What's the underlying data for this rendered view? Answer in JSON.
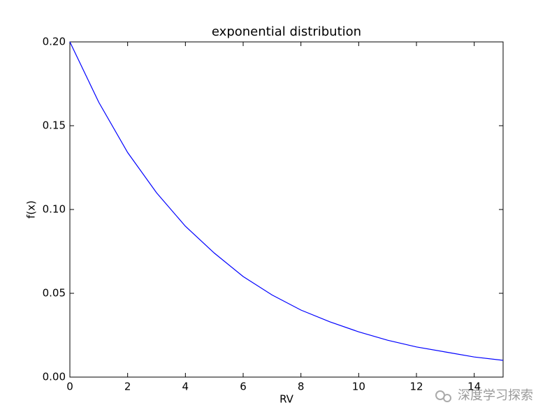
{
  "chart_data": {
    "type": "line",
    "title": "exponential distribution",
    "x_label": "RV",
    "y_label": "f(x)",
    "x": [
      0,
      1,
      2,
      3,
      4,
      5,
      6,
      7,
      8,
      9,
      10,
      11,
      12,
      13,
      14,
      15
    ],
    "series": [
      {
        "name": "f(x)",
        "color": "#0000ff",
        "values": [
          0.2,
          0.164,
          0.134,
          0.11,
          0.09,
          0.074,
          0.06,
          0.049,
          0.04,
          0.033,
          0.027,
          0.022,
          0.018,
          0.015,
          0.012,
          0.01
        ]
      }
    ],
    "xlim": [
      0,
      15
    ],
    "xticks": [
      0,
      2,
      4,
      6,
      8,
      10,
      12,
      14
    ],
    "ylim": [
      0,
      0.2
    ],
    "yticks": [
      {
        "value": 0,
        "label": "0.00"
      },
      0.05,
      {
        "value": 0.1,
        "label": "0.10"
      },
      0.15,
      {
        "value": 0.2,
        "label": "0.20"
      }
    ],
    "watermark": "深度学习探索"
  }
}
